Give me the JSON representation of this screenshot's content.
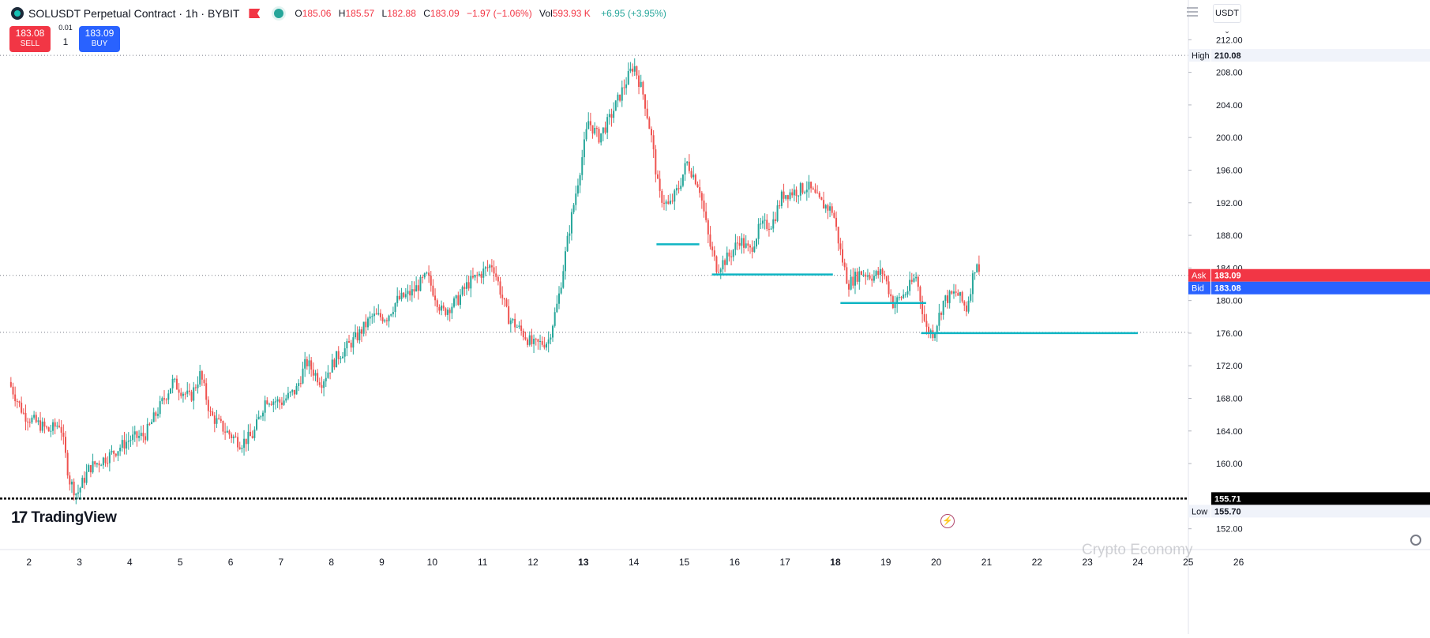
{
  "header": {
    "symbol_title": "SOLUSDT Perpetual Contract · 1h · BYBIT",
    "ohlc": {
      "open_label": "O",
      "open": "185.06",
      "high_label": "H",
      "high": "185.57",
      "low_label": "L",
      "low": "182.88",
      "close_label": "C",
      "close": "183.09",
      "change": "−1.97 (−1.06%)",
      "vol_label": "Vol",
      "volume": "593.93 K",
      "vol_change": "+6.95 (+3.95%)"
    },
    "currency": "USDT"
  },
  "trade": {
    "sell_price": "183.08",
    "sell_label": "SELL",
    "buy_price": "183.09",
    "buy_label": "BUY",
    "qty_step": "0.01",
    "qty": "1"
  },
  "branding": {
    "logo_text": "TradingView",
    "watermark": "Crypto Economy"
  },
  "colors": {
    "up": "#26a69a",
    "down": "#ef5350",
    "hline": "#0fb5c3",
    "ask": "#f23645",
    "bid": "#2962ff"
  },
  "icons": [
    "logo-dot-icon",
    "flag-icon",
    "eye-icon",
    "menu-icon",
    "flash-icon",
    "gear-icon"
  ],
  "chart_data": {
    "type": "candlestick",
    "title": "SOLUSDT Perpetual Contract · 1h · BYBIT",
    "interval": "1h",
    "ylim": [
      151,
      213
    ],
    "y_ticks": [
      "212.00",
      "208.00",
      "204.00",
      "200.00",
      "196.00",
      "192.00",
      "188.00",
      "184.00",
      "180.00",
      "176.00",
      "172.00",
      "168.00",
      "164.00",
      "160.00",
      "152.00"
    ],
    "x_ticks": [
      "2",
      "3",
      "4",
      "5",
      "6",
      "7",
      "8",
      "9",
      "10",
      "11",
      "12",
      "13",
      "14",
      "15",
      "16",
      "17",
      "18",
      "19",
      "20",
      "21",
      "22",
      "23",
      "24",
      "25",
      "26"
    ],
    "x_range_days": [
      1.55,
      26.3
    ],
    "grid": false,
    "price_path": [
      [
        1.6,
        170
      ],
      [
        1.9,
        166
      ],
      [
        2.15,
        165
      ],
      [
        2.4,
        164
      ],
      [
        2.62,
        165
      ],
      [
        2.8,
        158
      ],
      [
        2.95,
        156.2
      ],
      [
        3.2,
        159.5
      ],
      [
        3.6,
        161
      ],
      [
        4.0,
        163
      ],
      [
        4.3,
        163.5
      ],
      [
        4.6,
        167
      ],
      [
        4.85,
        170
      ],
      [
        5.2,
        168
      ],
      [
        5.4,
        171
      ],
      [
        5.6,
        166
      ],
      [
        5.9,
        164
      ],
      [
        6.2,
        162.5
      ],
      [
        6.45,
        163.5
      ],
      [
        6.7,
        168
      ],
      [
        7.0,
        167.5
      ],
      [
        7.3,
        169
      ],
      [
        7.5,
        172.5
      ],
      [
        7.8,
        170
      ],
      [
        8.1,
        173
      ],
      [
        8.5,
        175.5
      ],
      [
        8.8,
        178
      ],
      [
        9.1,
        178
      ],
      [
        9.3,
        180
      ],
      [
        9.6,
        181
      ],
      [
        9.9,
        183
      ],
      [
        10.2,
        178.5
      ],
      [
        10.5,
        180
      ],
      [
        10.7,
        182
      ],
      [
        10.9,
        183
      ],
      [
        11.2,
        184.5
      ],
      [
        11.5,
        178
      ],
      [
        11.8,
        176
      ],
      [
        12.0,
        174.5
      ],
      [
        12.3,
        175
      ],
      [
        12.5,
        180
      ],
      [
        12.7,
        188
      ],
      [
        12.9,
        195
      ],
      [
        13.1,
        202
      ],
      [
        13.3,
        200
      ],
      [
        13.5,
        202
      ],
      [
        13.75,
        205.5
      ],
      [
        14.0,
        209
      ],
      [
        14.2,
        205
      ],
      [
        14.35,
        200
      ],
      [
        14.5,
        193
      ],
      [
        14.7,
        191.5
      ],
      [
        14.9,
        194
      ],
      [
        15.05,
        197
      ],
      [
        15.3,
        194
      ],
      [
        15.5,
        187
      ],
      [
        15.65,
        184
      ],
      [
        15.9,
        185.5
      ],
      [
        16.1,
        187.5
      ],
      [
        16.3,
        186
      ],
      [
        16.5,
        189
      ],
      [
        16.75,
        189.5
      ],
      [
        16.95,
        193
      ],
      [
        17.25,
        193.5
      ],
      [
        17.45,
        194
      ],
      [
        17.7,
        192
      ],
      [
        17.95,
        191
      ],
      [
        18.1,
        186
      ],
      [
        18.25,
        182
      ],
      [
        18.5,
        183.5
      ],
      [
        18.75,
        183
      ],
      [
        18.95,
        183.5
      ],
      [
        19.15,
        179.5
      ],
      [
        19.4,
        181
      ],
      [
        19.6,
        183
      ],
      [
        19.8,
        176.5
      ],
      [
        19.95,
        176
      ],
      [
        20.15,
        180
      ],
      [
        20.4,
        181
      ],
      [
        20.6,
        179
      ],
      [
        20.8,
        185.2
      ],
      [
        20.85,
        183.09
      ]
    ],
    "reference_lines": {
      "high": {
        "label": "High",
        "value": "210.08"
      },
      "low": {
        "label": "Low",
        "value": "155.70"
      },
      "ask": {
        "label": "Ask",
        "value": "183.09"
      },
      "bid": {
        "label": "Bid",
        "value": "183.08"
      },
      "support_level": {
        "value": "155.71"
      },
      "dotted_level_2": 176.1
    },
    "drawn_segments": [
      {
        "from_day": 14.45,
        "to_day": 15.3,
        "price": 186.9
      },
      {
        "from_day": 15.55,
        "to_day": 17.95,
        "price": 183.2
      },
      {
        "from_day": 18.1,
        "to_day": 19.8,
        "price": 179.7
      },
      {
        "from_day": 19.7,
        "to_day": 24.0,
        "price": 176.0
      }
    ]
  }
}
